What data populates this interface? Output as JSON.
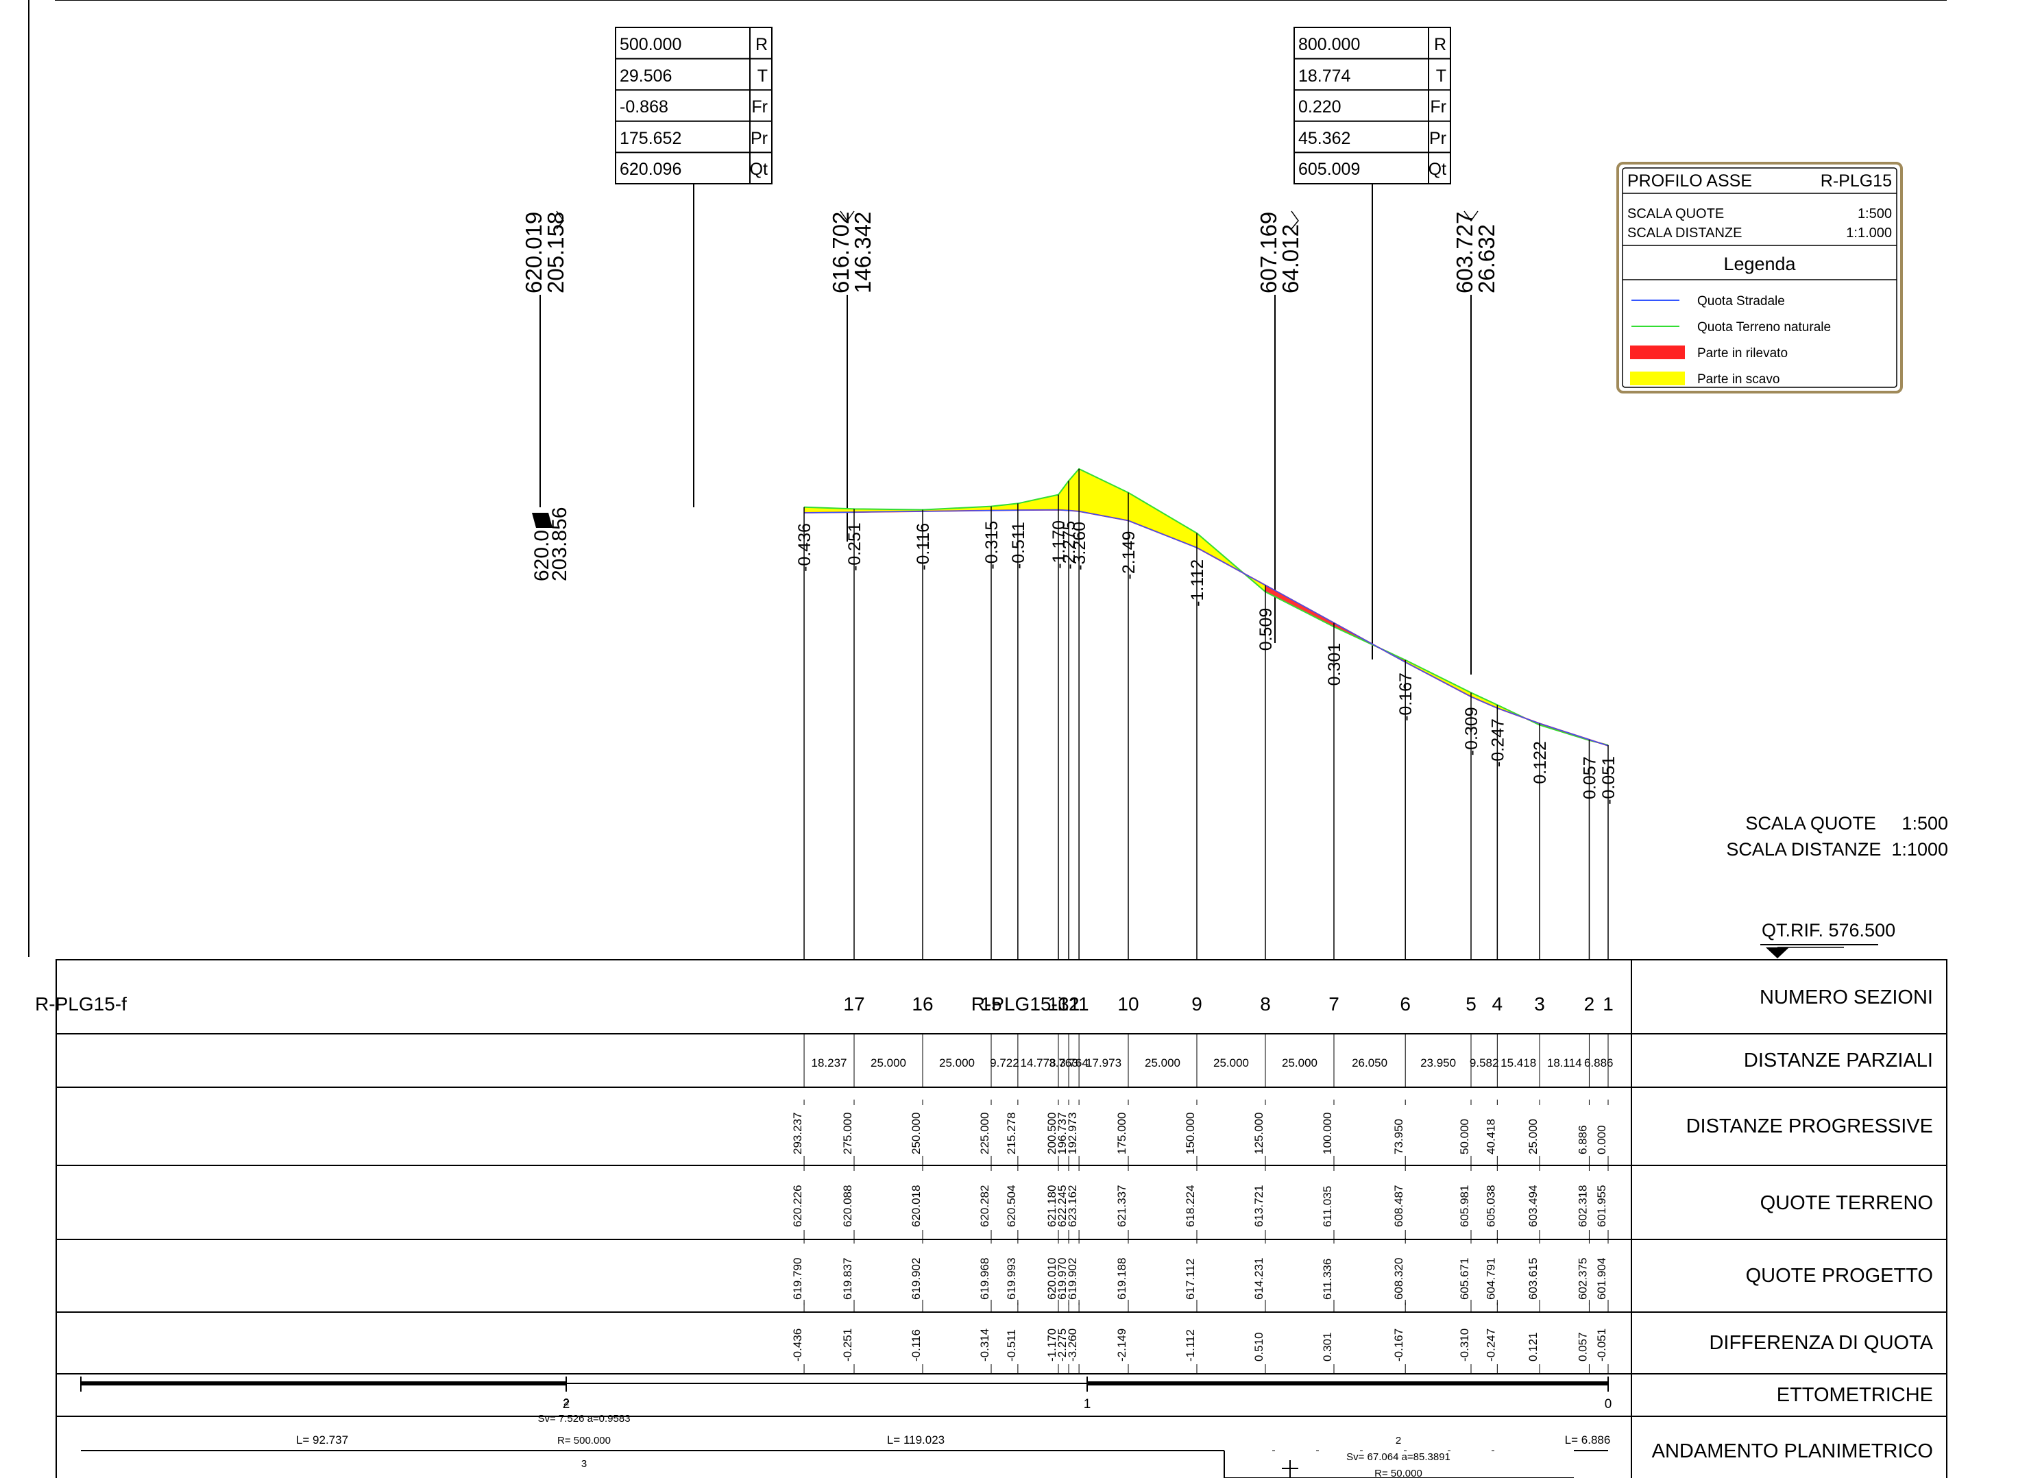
{
  "vertical_curves": [
    {
      "rows": [
        {
          "value": "500.000",
          "label": "R"
        },
        {
          "value": "29.506",
          "label": "T"
        },
        {
          "value": "-0.868",
          "label": "Fr"
        },
        {
          "value": "175.652",
          "label": "Pr"
        },
        {
          "value": "620.096",
          "label": "Qt"
        }
      ]
    },
    {
      "rows": [
        {
          "value": "800.000",
          "label": "R"
        },
        {
          "value": "18.774",
          "label": "T"
        },
        {
          "value": "0.220",
          "label": "Fr"
        },
        {
          "value": "45.362",
          "label": "Pr"
        },
        {
          "value": "605.009",
          "label": "Qt"
        }
      ]
    }
  ],
  "tangent_points": [
    {
      "quota": "620.019",
      "dist": "205.158"
    },
    {
      "quota": "616.702",
      "dist": "146.342"
    },
    {
      "quota": "607.169",
      "dist": "64.012"
    },
    {
      "quota": "603.727",
      "dist": "26.632"
    }
  ],
  "vertex_overlap": {
    "quota": "620.0",
    "dist": "203.856"
  },
  "legend": {
    "title": "PROFILO ASSE",
    "code": "R-PLG15",
    "scale_quote_label": "SCALA QUOTE",
    "scale_quote_value": "1:500",
    "scale_dist_label": "SCALA DISTANZE",
    "scale_dist_value": "1:1.000",
    "heading": "Legenda",
    "items": [
      {
        "label": "Quota Stradale",
        "color": "#3355ff",
        "kind": "line"
      },
      {
        "label": "Quota Terreno naturale",
        "color": "#33dd33",
        "kind": "line"
      },
      {
        "label": "Parte in rilevato",
        "color": "#ff2222",
        "kind": "fill"
      },
      {
        "label": "Parte in scavo",
        "color": "#ffff00",
        "kind": "fill"
      }
    ]
  },
  "scale_note": {
    "line1": "SCALA QUOTE     1:500",
    "line2": "SCALA DISTANZE  1:1000"
  },
  "reference": "QT.RIF. 576.500",
  "table_rows": [
    "NUMERO SEZIONI",
    "DISTANZE PARZIALI",
    "DISTANZE PROGRESSIVE",
    "QUOTE TERRENO",
    "QUOTE PROGETTO",
    "DIFFERENZA DI QUOTA",
    "ETTOMETRICHE",
    "ANDAMENTO PLANIMETRICO"
  ],
  "sections": [
    {
      "name": "R-PLG15-f",
      "prog": "293.237",
      "terreno": "620.226",
      "progetto": "619.790",
      "diff": "-0.436"
    },
    {
      "name": "17",
      "prog": "275.000",
      "terreno": "620.088",
      "progetto": "619.837",
      "diff": "-0.251"
    },
    {
      "name": "16",
      "prog": "250.000",
      "terreno": "620.018",
      "progetto": "619.902",
      "diff": "-0.116"
    },
    {
      "name": "15",
      "prog": "225.000",
      "terreno": "620.282",
      "progetto": "619.968",
      "diff": "-0.314"
    },
    {
      "name": "R-PLG15-i",
      "prog": "215.278",
      "terreno": "620.504",
      "progetto": "619.993",
      "diff": "-0.511"
    },
    {
      "name": "13",
      "prog": "200.500",
      "terreno": "621.180",
      "progetto": "620.010",
      "diff": "-1.170"
    },
    {
      "name": "12",
      "prog": "196.737",
      "terreno": "622.245",
      "progetto": "619.970",
      "diff": "-2.275"
    },
    {
      "name": "11",
      "prog": "192.973",
      "terreno": "623.162",
      "progetto": "619.902",
      "diff": "-3.260"
    },
    {
      "name": "10",
      "prog": "175.000",
      "terreno": "621.337",
      "progetto": "619.188",
      "diff": "-2.149"
    },
    {
      "name": "9",
      "prog": "150.000",
      "terreno": "618.224",
      "progetto": "617.112",
      "diff": "-1.112"
    },
    {
      "name": "8",
      "prog": "125.000",
      "terreno": "613.721",
      "progetto": "614.231",
      "diff": "0.510"
    },
    {
      "name": "7",
      "prog": "100.000",
      "terreno": "611.035",
      "progetto": "611.336",
      "diff": "0.301"
    },
    {
      "name": "6",
      "prog": "73.950",
      "terreno": "608.487",
      "progetto": "608.320",
      "diff": "-0.167"
    },
    {
      "name": "5",
      "prog": "50.000",
      "terreno": "605.981",
      "progetto": "605.671",
      "diff": "-0.310"
    },
    {
      "name": "4",
      "prog": "40.418",
      "terreno": "605.038",
      "progetto": "604.791",
      "diff": "-0.247"
    },
    {
      "name": "3",
      "prog": "25.000",
      "terreno": "603.494",
      "progetto": "603.615",
      "diff": "0.121"
    },
    {
      "name": "2",
      "prog": "6.886",
      "terreno": "602.318",
      "progetto": "602.375",
      "diff": "0.057"
    },
    {
      "name": "1",
      "prog": "0.000",
      "terreno": "601.955",
      "progetto": "601.904",
      "diff": "-0.051"
    }
  ],
  "partials": [
    "18.237",
    "25.000",
    "25.000",
    "9.722",
    "14.778",
    "3.763",
    "3.764",
    "17.973",
    "25.000",
    "25.000",
    "25.000",
    "26.050",
    "23.950",
    "9.582",
    "15.418",
    "18.114",
    "6.886"
  ],
  "profile_labels": [
    "-0.436",
    "-0.251",
    "-0.116",
    "-0.315",
    "-0.511",
    "-1.170",
    "-2.275",
    "-3.260",
    "-2.149",
    "-1.112",
    "0.509",
    "0.301",
    "-0.167",
    "-0.309",
    "-0.247",
    "0.122",
    "0.057",
    "-0.051"
  ],
  "ettometriche": [
    "2",
    "1",
    "0"
  ],
  "planimetrico": {
    "seg1": "L= 92.737",
    "curve1_a": "Sv= 7.526  a=0.9583",
    "curve1_b": "R= 500.000",
    "curve1_num": "2",
    "curve1_num2": "3",
    "seg2": "L= 119.023",
    "curve2_num": "2",
    "curve2_a": "Sv= 67.064  a=85.3891",
    "curve2_b": "R= 50.000",
    "seg3": "L= 6.886"
  }
}
